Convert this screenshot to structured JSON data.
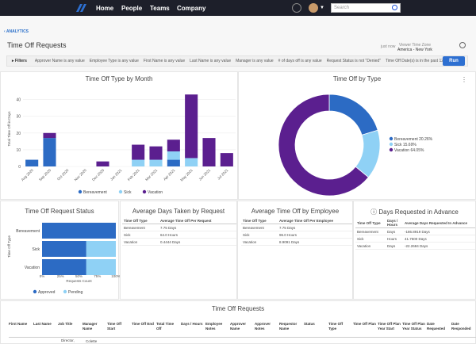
{
  "nav": {
    "items": [
      "Home",
      "People",
      "Teams",
      "Company"
    ],
    "search_placeholder": "Search"
  },
  "breadcrumb": {
    "back_label": "‹ ANALYTICS"
  },
  "page": {
    "title": "Time Off Requests",
    "just_now": "just now",
    "timezone_label": "Viewer Time Zone",
    "timezone_value": "America - New York"
  },
  "filters": {
    "label": "Filters",
    "items": [
      "Approver Name is any value",
      "Employee Type is any value",
      "First Name is any value",
      "Last Name is any value",
      "Manager is any value",
      "# of days off is any value",
      "Request Status is not \"Denied\"",
      "Time Off Date(s) is in the past 12"
    ],
    "run_label": "Run"
  },
  "chart_data": [
    {
      "type": "bar",
      "title": "Time Off Type by Month",
      "ylabel": "Total Time Off in Days",
      "categories": [
        "Aug 2020",
        "Sep 2020",
        "Oct 2020",
        "Nov 2020",
        "Dec 2020",
        "Jan 2021",
        "Feb 2021",
        "Mar 2021",
        "Apr 2021",
        "May 2021",
        "Jun 2021",
        "Jul 2021"
      ],
      "series": [
        {
          "name": "Bereavement",
          "values": [
            4,
            17,
            0,
            0,
            0,
            0,
            0,
            0,
            4,
            0,
            0,
            0
          ]
        },
        {
          "name": "Sick",
          "values": [
            0,
            0,
            0,
            0,
            0,
            0,
            4,
            4,
            5,
            5,
            0,
            0
          ]
        },
        {
          "name": "Vacation",
          "values": [
            0,
            3,
            0,
            0,
            3,
            0,
            9,
            8,
            7,
            38,
            17,
            8
          ]
        }
      ],
      "ylim": [
        0,
        45
      ],
      "yticks": [
        0,
        10,
        20,
        30,
        40
      ],
      "colors": [
        "#2c6bc4",
        "#8fd1f5",
        "#5b1f8f"
      ],
      "legend_position": "bottom"
    },
    {
      "type": "pie",
      "title": "Time Off by Type",
      "slices": [
        {
          "name": "Bereavement",
          "label": "Bereavement 20.26%",
          "value": 20.26
        },
        {
          "name": "Sick",
          "label": "Sick 15.69%",
          "value": 15.69
        },
        {
          "name": "Vacation",
          "label": "Vacation 64.05%",
          "value": 64.05
        }
      ],
      "colors": [
        "#2c6bc4",
        "#8fd1f5",
        "#5b1f8f"
      ],
      "legend_position": "right"
    },
    {
      "type": "bar",
      "title": "Time Off Request Status",
      "ylabel": "Time Off Type",
      "xlabel": "Requests Count",
      "categories": [
        "Bereavement",
        "Sick",
        "Vacation"
      ],
      "series": [
        {
          "name": "Approved",
          "values": [
            100,
            60,
            60
          ]
        },
        {
          "name": "Pending",
          "values": [
            0,
            40,
            40
          ]
        }
      ],
      "xticks": [
        "0%",
        "25%",
        "50%",
        "75%",
        "100%"
      ],
      "colors": [
        "#2c6bc4",
        "#8fd1f5"
      ],
      "legend_position": "bottom"
    }
  ],
  "avg_request": {
    "title": "Average Days Taken by Request",
    "headers": [
      "Time Off Type",
      "Average Time Off Per Request"
    ],
    "rows": [
      [
        "Bereavement",
        "7.75 Days"
      ],
      [
        "Sick",
        "64.0 Hours"
      ],
      [
        "Vacation",
        "0.4444 Days"
      ]
    ]
  },
  "avg_employee": {
    "title": "Average Time Off by Employee",
    "headers": [
      "Time Off Type",
      "Average Time Off Per Employee"
    ],
    "rows": [
      [
        "Bereavement",
        "7.75 Days"
      ],
      [
        "Sick",
        "96.0 Hours"
      ],
      [
        "Vacation",
        "8.9091 Days"
      ]
    ]
  },
  "advance": {
    "title": "Days Requested in Advance",
    "headers": [
      "Time Off Type",
      "Days / Hours",
      "Average Days Requested In Advance"
    ],
    "rows": [
      [
        "Bereavement",
        "Days",
        "-186.8919 Days"
      ],
      [
        "Sick",
        "Hours",
        "41.7500 Days"
      ],
      [
        "Vacation",
        "Days",
        "-22.2684 Days"
      ]
    ]
  },
  "requests": {
    "title": "Time Off Requests",
    "headers": [
      "First Name",
      "Last Name",
      "Job Title",
      "Manager Name",
      "Time Off Start",
      "Time Off End",
      "Total Time Off",
      "Days / Hours",
      "Employee Notes",
      "Approver Name",
      "Approver Notes",
      "Requestor Name",
      "Status",
      "Time Off Type",
      "Time Off Plan",
      "Time Off Plan Year Start",
      "Time Off Plan Year Status",
      "Date Requested",
      "Date Responded"
    ],
    "first_row_peek": [
      "Director,",
      "Colette"
    ]
  }
}
